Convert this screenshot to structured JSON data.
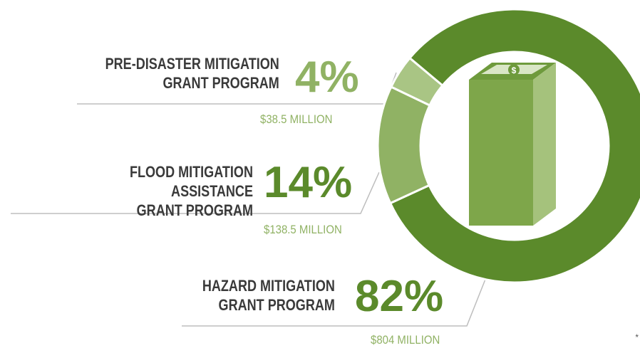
{
  "chart_data": {
    "type": "donut",
    "categories": [
      "PRE-DISASTER MITIGATION\nGRANT PROGRAM",
      "FLOOD MITIGATION ASSISTANCE\nGRANT PROGRAM",
      "HAZARD MITIGATION\nGRANT PROGRAM"
    ],
    "values": [
      4,
      14,
      82
    ],
    "value_labels": [
      "4%",
      "14%",
      "82%"
    ],
    "amounts": [
      "$38.5 MILLION",
      "$138.5 MILLION",
      "$804 MILLION"
    ],
    "colors": [
      "#a9c584",
      "#90b264",
      "#5b8a2b"
    ],
    "footnote": "*"
  }
}
